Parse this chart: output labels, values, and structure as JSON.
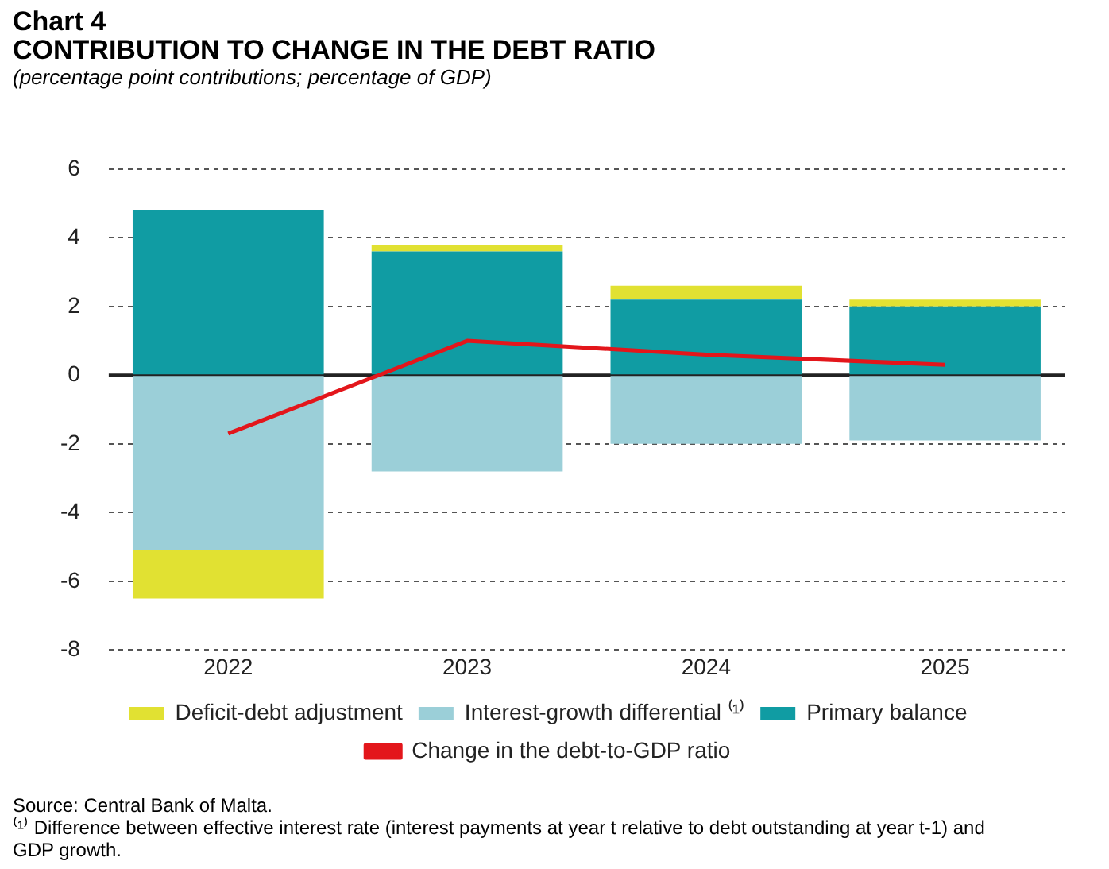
{
  "chart_data": {
    "type": "bar",
    "title": "Chart 4",
    "subtitle": "CONTRIBUTION TO CHANGE IN THE DEBT RATIO",
    "ylabel": "(percentage point contributions; percentage of GDP)",
    "categories": [
      "2022",
      "2023",
      "2024",
      "2025"
    ],
    "stacked": true,
    "series": [
      {
        "name": "Primary balance",
        "color": "#109ca3",
        "values": [
          4.8,
          3.6,
          2.2,
          2.0
        ]
      },
      {
        "name": "Interest-growth differential ⁽¹⁾",
        "color": "#9bcfd8",
        "values": [
          -5.1,
          -2.8,
          -2.0,
          -1.9
        ]
      },
      {
        "name": "Deficit-debt adjustment",
        "color": "#e1e132",
        "values": [
          -1.4,
          0.2,
          0.4,
          0.2
        ]
      },
      {
        "name": "Change in the debt-to-GDP ratio",
        "type": "line",
        "color": "#e3161b",
        "values": [
          -1.7,
          1.0,
          0.6,
          0.3
        ]
      }
    ],
    "ref_lines": [
      {
        "axis": "y",
        "value": 0,
        "color": "#222222"
      }
    ],
    "ylim": [
      -8,
      6
    ],
    "yticks": [
      -8,
      -6,
      -4,
      -2,
      0,
      2,
      4,
      6
    ],
    "grid": "y",
    "legend": "bottom",
    "marker": "none",
    "annotations": [
      "Source: Central Bank of Malta.",
      "⁽¹⁾ Difference between effective interest rate (interest payments at year t relative to debt outstanding at year t-1) and GDP growth."
    ]
  }
}
